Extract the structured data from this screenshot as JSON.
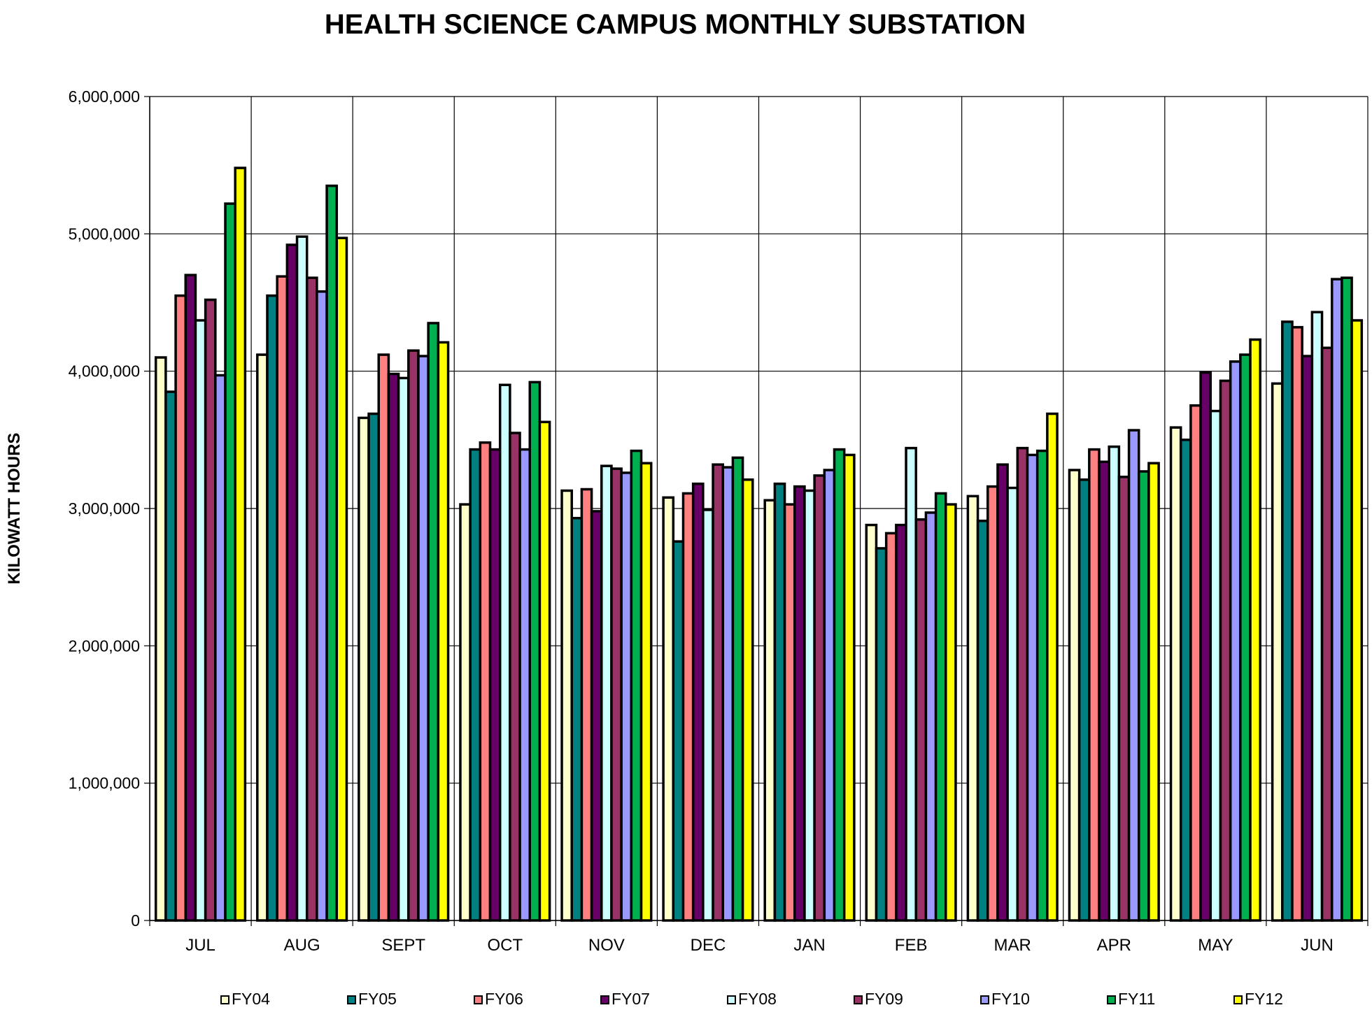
{
  "chart_data": {
    "type": "bar",
    "title": "HEALTH SCIENCE CAMPUS MONTHLY SUBSTATION",
    "xlabel": "",
    "ylabel": "KILOWATT HOURS",
    "ylim": [
      0,
      6000000
    ],
    "yticks": [
      "0",
      "1,000,000",
      "2,000,000",
      "3,000,000",
      "4,000,000",
      "5,000,000",
      "6,000,000"
    ],
    "ytick_values": [
      0,
      1000000,
      2000000,
      3000000,
      4000000,
      5000000,
      6000000
    ],
    "grid": true,
    "legend_position": "bottom",
    "categories": [
      "JUL",
      "AUG",
      "SEPT",
      "OCT",
      "NOV",
      "DEC",
      "JAN",
      "FEB",
      "MAR",
      "APR",
      "MAY",
      "JUN"
    ],
    "series": [
      {
        "name": "FY04",
        "color": "#FFFFCC",
        "values": [
          4100000,
          4120000,
          3660000,
          3030000,
          3130000,
          3080000,
          3060000,
          2880000,
          3090000,
          3280000,
          3590000,
          3910000
        ]
      },
      {
        "name": "FY05",
        "color": "#008080",
        "values": [
          3850000,
          4550000,
          3690000,
          3430000,
          2930000,
          2760000,
          3180000,
          2710000,
          2910000,
          3210000,
          3500000,
          4360000
        ]
      },
      {
        "name": "FY06",
        "color": "#FF8080",
        "values": [
          4550000,
          4690000,
          4120000,
          3480000,
          3140000,
          3110000,
          3030000,
          2820000,
          3160000,
          3430000,
          3750000,
          4320000
        ]
      },
      {
        "name": "FY07",
        "color": "#660066",
        "values": [
          4700000,
          4920000,
          3980000,
          3430000,
          2980000,
          3180000,
          3160000,
          2880000,
          3320000,
          3340000,
          3990000,
          4110000
        ]
      },
      {
        "name": "FY08",
        "color": "#CCFFFF",
        "values": [
          4370000,
          4980000,
          3950000,
          3900000,
          3310000,
          2990000,
          3130000,
          3440000,
          3150000,
          3450000,
          3710000,
          4430000
        ]
      },
      {
        "name": "FY09",
        "color": "#993366",
        "values": [
          4520000,
          4680000,
          4150000,
          3550000,
          3290000,
          3320000,
          3240000,
          2920000,
          3440000,
          3230000,
          3930000,
          4170000
        ]
      },
      {
        "name": "FY10",
        "color": "#9999FF",
        "values": [
          3970000,
          4580000,
          4110000,
          3430000,
          3260000,
          3300000,
          3280000,
          2970000,
          3390000,
          3570000,
          4070000,
          4670000
        ]
      },
      {
        "name": "FY11",
        "color": "#00B050",
        "values": [
          5220000,
          5350000,
          4350000,
          3920000,
          3420000,
          3370000,
          3430000,
          3110000,
          3420000,
          3270000,
          4120000,
          4680000
        ]
      },
      {
        "name": "FY12",
        "color": "#FFFF00",
        "values": [
          5480000,
          4970000,
          4210000,
          3630000,
          3330000,
          3210000,
          3390000,
          3030000,
          3690000,
          3330000,
          4230000,
          4370000
        ]
      }
    ]
  }
}
